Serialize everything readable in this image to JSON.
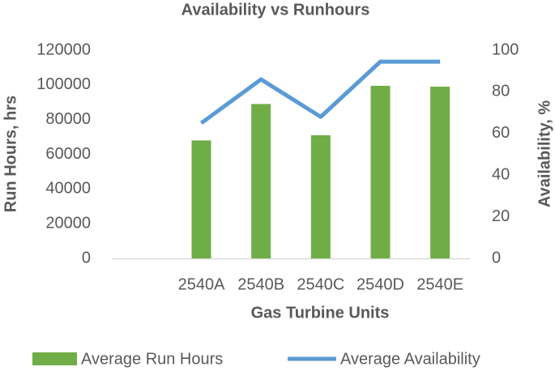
{
  "chart_data": {
    "type": "bar",
    "title": "Availability vs Runhours",
    "x_label": "Gas Turbine Units",
    "y_label": "Run Hours, hrs",
    "y2_label": "Availability, %",
    "categories": [
      null,
      "2540A",
      "2540B",
      "2540C",
      "2540D",
      "2540E"
    ],
    "series": [
      {
        "name": "Average Run Hours",
        "type": "bar",
        "color": "#70ad47",
        "values": [
          null,
          68000,
          89000,
          71000,
          99500,
          99000
        ]
      },
      {
        "name": "Average Availability",
        "type": "line",
        "axis": "y2",
        "color": "#5b9bd5",
        "values": [
          null,
          65,
          86,
          68,
          94.5,
          94.5
        ]
      }
    ],
    "ylim": [
      0,
      120000
    ],
    "yticks": [
      0,
      20000,
      40000,
      60000,
      80000,
      100000,
      120000
    ],
    "y2lim": [
      0,
      100
    ],
    "y2ticks": [
      0,
      20,
      40,
      60,
      80,
      100
    ],
    "legend": "bottom"
  }
}
